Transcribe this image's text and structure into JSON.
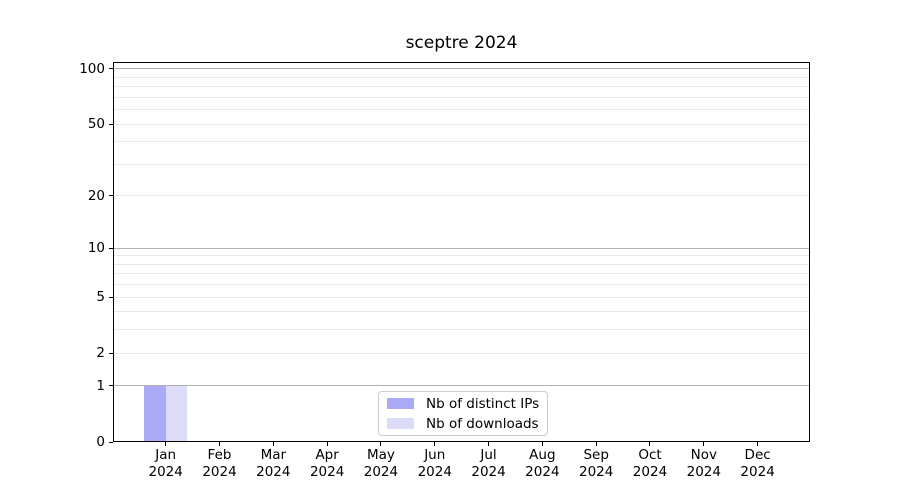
{
  "title": "sceptre 2024",
  "colors": {
    "distinct_ips": "#aaaaf6",
    "downloads": "#dcdcf9",
    "grid_minor": "#e8e8e8",
    "grid_major": "#b2b2b2",
    "axis": "#000000",
    "legend_border": "#cccccc",
    "background": "#ffffff",
    "text": "#000000"
  },
  "chart_data": {
    "type": "bar",
    "title": "sceptre 2024",
    "categories": [
      {
        "month": "Jan",
        "year": "2024"
      },
      {
        "month": "Feb",
        "year": "2024"
      },
      {
        "month": "Mar",
        "year": "2024"
      },
      {
        "month": "Apr",
        "year": "2024"
      },
      {
        "month": "May",
        "year": "2024"
      },
      {
        "month": "Jun",
        "year": "2024"
      },
      {
        "month": "Jul",
        "year": "2024"
      },
      {
        "month": "Aug",
        "year": "2024"
      },
      {
        "month": "Sep",
        "year": "2024"
      },
      {
        "month": "Oct",
        "year": "2024"
      },
      {
        "month": "Nov",
        "year": "2024"
      },
      {
        "month": "Dec",
        "year": "2024"
      }
    ],
    "series": [
      {
        "name": "Nb of distinct IPs",
        "color": "#aaaaf6",
        "values": [
          1,
          0,
          0,
          0,
          0,
          0,
          0,
          0,
          0,
          0,
          0,
          0
        ]
      },
      {
        "name": "Nb of downloads",
        "color": "#dcdcf9",
        "values": [
          1,
          0,
          0,
          0,
          0,
          0,
          0,
          0,
          0,
          0,
          0,
          0
        ]
      }
    ],
    "yscale": "log1p",
    "ylim": [
      0,
      109
    ],
    "y_ticks": [
      0,
      1,
      2,
      5,
      10,
      20,
      50,
      100
    ],
    "y_major_gridlines": [
      1,
      10,
      100
    ],
    "y_minor_gridlines": [
      2,
      3,
      4,
      5,
      6,
      7,
      8,
      9,
      20,
      30,
      40,
      50,
      60,
      70,
      80,
      90
    ],
    "grid": "horizontal-only",
    "legend_position": "lower center",
    "xlabel": "",
    "ylabel": ""
  }
}
